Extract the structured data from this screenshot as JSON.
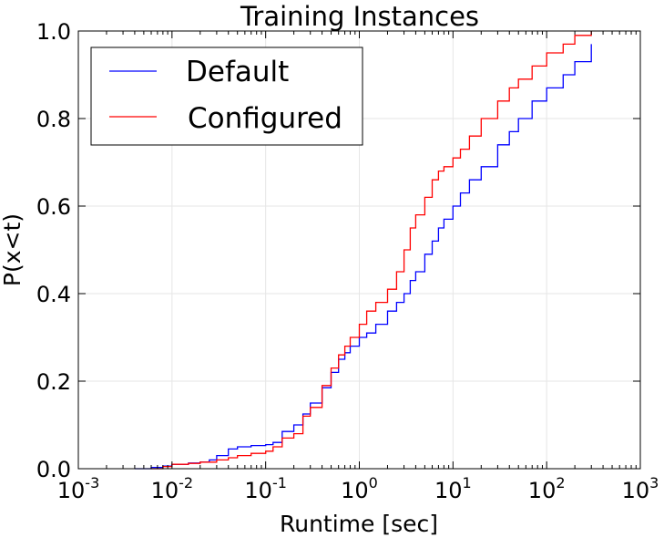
{
  "chart_data": {
    "type": "line",
    "title": "Training Instances",
    "xlabel": "Runtime [sec]",
    "ylabel": "P(x<t)",
    "x_scale": "log",
    "xlim": [
      0.001,
      1000
    ],
    "ylim": [
      0.0,
      1.0
    ],
    "grid": true,
    "legend_position": "top-left",
    "x_ticks": [
      {
        "base": "10",
        "exp": "-3"
      },
      {
        "base": "10",
        "exp": "-2"
      },
      {
        "base": "10",
        "exp": "-1"
      },
      {
        "base": "10",
        "exp": "0"
      },
      {
        "base": "10",
        "exp": "1"
      },
      {
        "base": "10",
        "exp": "2"
      },
      {
        "base": "10",
        "exp": "3"
      }
    ],
    "y_ticks": [
      "0.0",
      "0.2",
      "0.4",
      "0.6",
      "0.8",
      "1.0"
    ],
    "series": [
      {
        "name": "Default",
        "color": "#0000ff",
        "x": [
          0.004,
          0.006,
          0.008,
          0.01,
          0.015,
          0.02,
          0.025,
          0.03,
          0.04,
          0.05,
          0.07,
          0.1,
          0.12,
          0.15,
          0.2,
          0.25,
          0.3,
          0.4,
          0.5,
          0.6,
          0.7,
          0.8,
          1.0,
          1.2,
          1.5,
          2.0,
          2.5,
          3.0,
          3.5,
          4.0,
          5.0,
          6.0,
          7.0,
          8.0,
          10.0,
          12.0,
          15.0,
          20.0,
          30.0,
          40.0,
          50.0,
          70.0,
          100.0,
          150.0,
          200.0,
          300.0
        ],
        "y": [
          0.0,
          0.003,
          0.006,
          0.01,
          0.013,
          0.015,
          0.02,
          0.03,
          0.045,
          0.05,
          0.053,
          0.055,
          0.06,
          0.085,
          0.1,
          0.125,
          0.15,
          0.185,
          0.22,
          0.25,
          0.265,
          0.28,
          0.3,
          0.31,
          0.33,
          0.36,
          0.38,
          0.4,
          0.43,
          0.45,
          0.49,
          0.52,
          0.55,
          0.57,
          0.6,
          0.63,
          0.66,
          0.69,
          0.74,
          0.77,
          0.8,
          0.84,
          0.87,
          0.9,
          0.93,
          0.97
        ]
      },
      {
        "name": "Configured",
        "color": "#ff0000",
        "x": [
          0.006,
          0.008,
          0.01,
          0.015,
          0.02,
          0.03,
          0.04,
          0.05,
          0.07,
          0.1,
          0.12,
          0.15,
          0.2,
          0.25,
          0.3,
          0.4,
          0.5,
          0.6,
          0.7,
          0.8,
          1.0,
          1.2,
          1.5,
          2.0,
          2.5,
          3.0,
          3.5,
          4.0,
          5.0,
          6.0,
          7.0,
          8.0,
          10.0,
          12.0,
          15.0,
          20.0,
          30.0,
          40.0,
          50.0,
          70.0,
          100.0,
          150.0,
          200.0,
          300.0
        ],
        "y": [
          0.0,
          0.005,
          0.01,
          0.012,
          0.015,
          0.02,
          0.025,
          0.03,
          0.035,
          0.04,
          0.05,
          0.07,
          0.08,
          0.12,
          0.14,
          0.19,
          0.23,
          0.26,
          0.28,
          0.3,
          0.33,
          0.36,
          0.38,
          0.41,
          0.45,
          0.5,
          0.55,
          0.58,
          0.62,
          0.66,
          0.68,
          0.69,
          0.71,
          0.73,
          0.76,
          0.8,
          0.84,
          0.87,
          0.89,
          0.92,
          0.95,
          0.97,
          0.99,
          1.0
        ]
      }
    ]
  }
}
